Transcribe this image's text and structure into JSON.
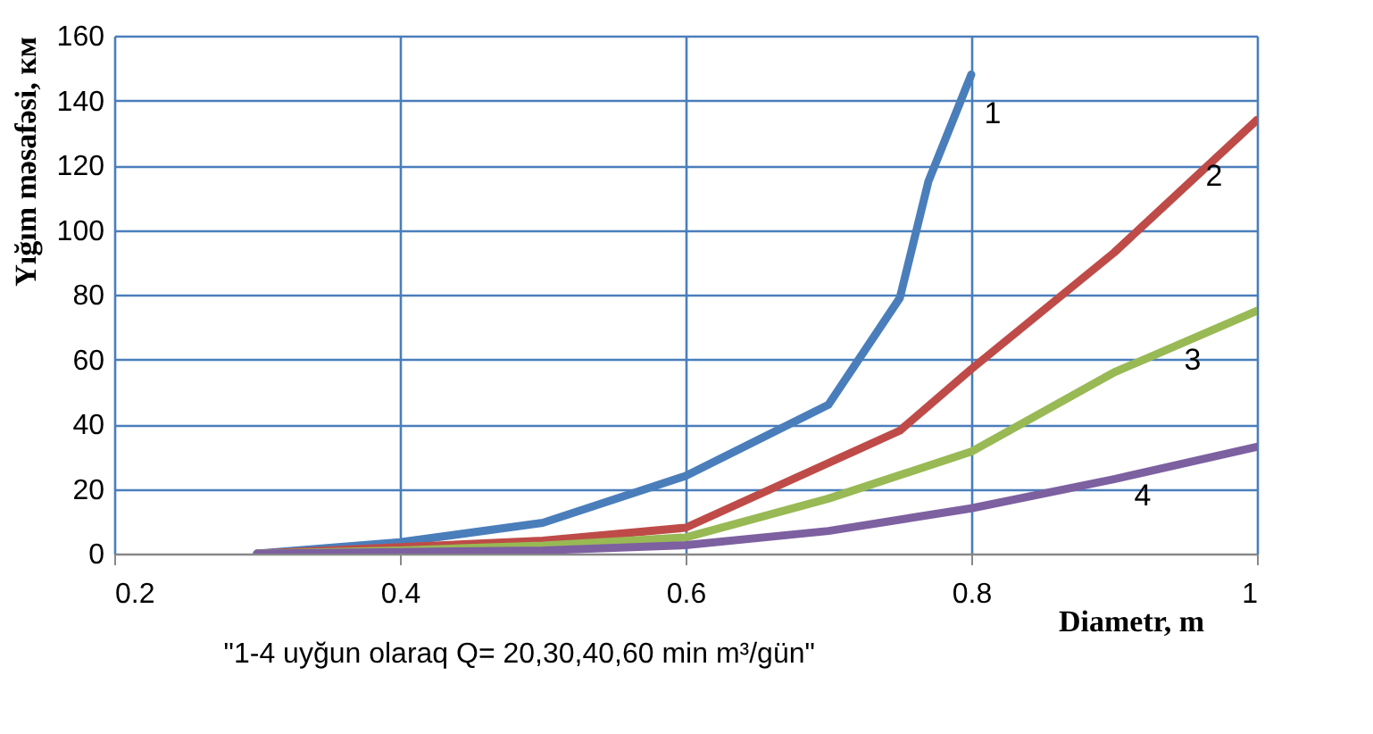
{
  "chart_data": {
    "type": "line",
    "xlabel": "Diametr, m",
    "ylabel": "Yığım məsafəsi, км",
    "annotations": [
      "\"1-4 uyğun olaraq Q= 20,30,40,60 min m³/gün\""
    ],
    "xlim": [
      0.2,
      1
    ],
    "xticks": [
      0.2,
      0.4,
      0.6,
      0.8,
      1
    ],
    "ylim": [
      0,
      160
    ],
    "yticks": [
      0,
      20,
      40,
      60,
      80,
      100,
      120,
      140,
      160
    ],
    "grid": true,
    "marker": "none",
    "line_style": "solid",
    "series": [
      {
        "name": "1",
        "color": "#4a7ebb",
        "x": [
          0.3,
          0.4,
          0.5,
          0.6,
          0.7,
          0.75,
          0.77,
          0.8
        ],
        "values": [
          0,
          3.5,
          9.5,
          24,
          46,
          79,
          115,
          148
        ]
      },
      {
        "name": "2",
        "color": "#be4b48",
        "x": [
          0.3,
          0.4,
          0.5,
          0.6,
          0.7,
          0.75,
          0.8,
          0.9,
          1
        ],
        "values": [
          0,
          2,
          4,
          8,
          28,
          38,
          57,
          93,
          134
        ]
      },
      {
        "name": "3",
        "color": "#98b954",
        "x": [
          0.3,
          0.4,
          0.5,
          0.6,
          0.7,
          0.8,
          0.9,
          1
        ],
        "values": [
          0,
          1,
          2.5,
          5,
          17,
          31.5,
          56,
          75
        ]
      },
      {
        "name": "4",
        "color": "#7d60a0",
        "x": [
          0.3,
          0.4,
          0.5,
          0.6,
          0.7,
          0.8,
          0.9,
          1
        ],
        "values": [
          0,
          0.5,
          1,
          2.6,
          7,
          14,
          23,
          33
        ]
      }
    ]
  }
}
